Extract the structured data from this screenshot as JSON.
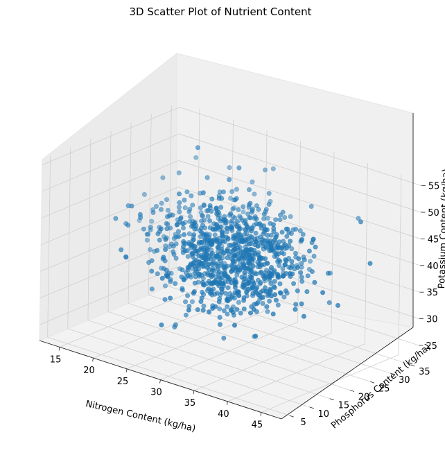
{
  "chart_data": {
    "type": "scatter",
    "projection": "3d",
    "title": "3D Scatter Plot of Nutrient Content",
    "xlabel": "Nitrogen Content (kg/ha)",
    "ylabel": "Phosphorus Content (kg/ha)",
    "zlabel": "Potassium Content (kg/ha)",
    "xlim": [
      12,
      48
    ],
    "ylim": [
      3,
      37
    ],
    "zlim": [
      22,
      56
    ],
    "xticks": [
      15,
      20,
      25,
      30,
      35,
      40,
      45
    ],
    "yticks": [
      5,
      10,
      15,
      20,
      25,
      30,
      35
    ],
    "zticks": [
      25,
      30,
      35,
      40,
      45,
      50,
      55
    ],
    "grid": true,
    "legend": "none",
    "point_count": 1000,
    "distribution": {
      "x_mean": 30,
      "x_sd": 5,
      "y_mean": 20,
      "y_sd": 5,
      "z_mean": 40,
      "z_sd": 5
    },
    "marker_color": "#1f77b4"
  }
}
